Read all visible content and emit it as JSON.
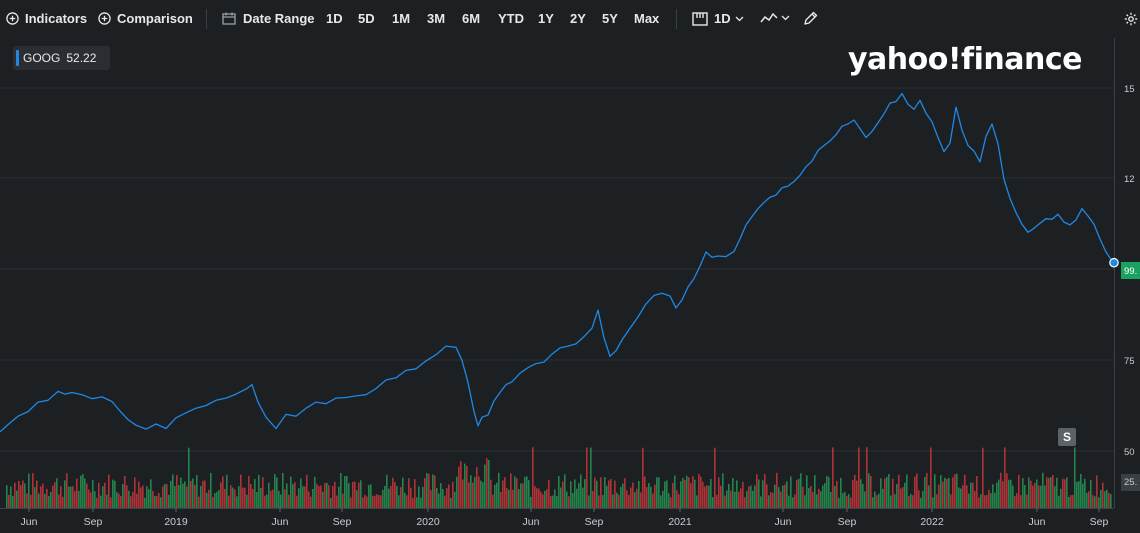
{
  "toolbar": {
    "indicators_label": "Indicators",
    "comparison_label": "Comparison",
    "date_range_label": "Date Range",
    "periods": [
      "1D",
      "5D",
      "1M",
      "3M",
      "6M",
      "YTD",
      "1Y",
      "2Y",
      "5Y",
      "Max"
    ],
    "interval_label": "1D"
  },
  "legend": {
    "symbol": "GOOG",
    "value": "52.22"
  },
  "logo": "yahoo!finance",
  "s_badge": "S",
  "colors": {
    "background": "#1d2023",
    "line": "#1e88e5",
    "up_volume": "#26a65b",
    "down_volume": "#e03a3e",
    "price_tag": "#1aa260"
  },
  "chart_data": {
    "type": "line",
    "title": "",
    "series": [
      {
        "name": "GOOG"
      }
    ],
    "x_tick_labels": [
      "Jun",
      "Sep",
      "2019",
      "Jun",
      "Sep",
      "2020",
      "Jun",
      "Sep",
      "2021",
      "Jun",
      "Sep",
      "2022",
      "Jun",
      "Sep"
    ],
    "y_tick_labels": [
      "15",
      "12",
      "99.",
      "75",
      "50",
      "25."
    ],
    "y_axis_levels": [
      150,
      125,
      100,
      75,
      50
    ],
    "price_tag_label": "99.",
    "ylim": [
      43,
      155
    ],
    "price_points": [
      [
        0,
        51
      ],
      [
        8,
        53
      ],
      [
        18,
        56
      ],
      [
        28,
        57
      ],
      [
        38,
        60
      ],
      [
        48,
        60
      ],
      [
        58,
        63
      ],
      [
        65,
        62
      ],
      [
        72,
        63
      ],
      [
        82,
        62
      ],
      [
        92,
        61
      ],
      [
        102,
        61
      ],
      [
        112,
        60
      ],
      [
        120,
        57
      ],
      [
        128,
        55
      ],
      [
        136,
        53
      ],
      [
        146,
        52
      ],
      [
        156,
        53
      ],
      [
        166,
        52
      ],
      [
        176,
        55
      ],
      [
        186,
        57
      ],
      [
        196,
        58
      ],
      [
        206,
        59
      ],
      [
        216,
        60
      ],
      [
        226,
        61
      ],
      [
        236,
        62
      ],
      [
        246,
        64
      ],
      [
        252,
        65
      ],
      [
        258,
        60
      ],
      [
        266,
        55
      ],
      [
        276,
        52
      ],
      [
        286,
        56
      ],
      [
        296,
        56
      ],
      [
        306,
        58
      ],
      [
        316,
        60
      ],
      [
        326,
        59
      ],
      [
        336,
        61
      ],
      [
        346,
        61
      ],
      [
        356,
        62
      ],
      [
        366,
        62
      ],
      [
        376,
        64
      ],
      [
        386,
        66
      ],
      [
        396,
        67
      ],
      [
        406,
        69
      ],
      [
        416,
        70
      ],
      [
        426,
        72
      ],
      [
        436,
        74
      ],
      [
        446,
        76
      ],
      [
        456,
        76
      ],
      [
        462,
        72
      ],
      [
        468,
        66
      ],
      [
        474,
        57
      ],
      [
        478,
        53
      ],
      [
        482,
        55
      ],
      [
        488,
        56
      ],
      [
        494,
        60
      ],
      [
        500,
        63
      ],
      [
        506,
        65
      ],
      [
        512,
        66
      ],
      [
        520,
        68
      ],
      [
        528,
        70
      ],
      [
        536,
        71
      ],
      [
        544,
        72
      ],
      [
        552,
        74
      ],
      [
        560,
        76
      ],
      [
        568,
        76
      ],
      [
        576,
        77
      ],
      [
        584,
        79
      ],
      [
        592,
        82
      ],
      [
        598,
        87
      ],
      [
        604,
        79
      ],
      [
        610,
        73
      ],
      [
        616,
        75
      ],
      [
        622,
        78
      ],
      [
        630,
        82
      ],
      [
        638,
        85
      ],
      [
        646,
        89
      ],
      [
        654,
        91
      ],
      [
        662,
        92
      ],
      [
        670,
        91
      ],
      [
        676,
        88
      ],
      [
        682,
        90
      ],
      [
        688,
        94
      ],
      [
        694,
        96
      ],
      [
        700,
        100
      ],
      [
        706,
        104
      ],
      [
        712,
        103
      ],
      [
        718,
        103
      ],
      [
        726,
        103
      ],
      [
        734,
        104
      ],
      [
        740,
        108
      ],
      [
        746,
        112
      ],
      [
        752,
        115
      ],
      [
        758,
        117
      ],
      [
        764,
        119
      ],
      [
        770,
        120
      ],
      [
        776,
        121
      ],
      [
        782,
        123
      ],
      [
        788,
        124
      ],
      [
        794,
        125
      ],
      [
        800,
        127
      ],
      [
        806,
        129
      ],
      [
        812,
        131
      ],
      [
        818,
        134
      ],
      [
        824,
        136
      ],
      [
        830,
        137
      ],
      [
        836,
        139
      ],
      [
        842,
        141
      ],
      [
        848,
        142
      ],
      [
        854,
        143
      ],
      [
        860,
        141
      ],
      [
        866,
        138
      ],
      [
        872,
        140
      ],
      [
        878,
        142
      ],
      [
        884,
        145
      ],
      [
        890,
        148
      ],
      [
        896,
        149
      ],
      [
        902,
        151
      ],
      [
        908,
        148
      ],
      [
        914,
        146
      ],
      [
        920,
        149
      ],
      [
        926,
        145
      ],
      [
        932,
        143
      ],
      [
        938,
        138
      ],
      [
        944,
        134
      ],
      [
        950,
        136
      ],
      [
        956,
        147
      ],
      [
        962,
        140
      ],
      [
        968,
        136
      ],
      [
        974,
        134
      ],
      [
        980,
        131
      ],
      [
        986,
        138
      ],
      [
        992,
        142
      ],
      [
        998,
        136
      ],
      [
        1004,
        126
      ],
      [
        1010,
        120
      ],
      [
        1016,
        116
      ],
      [
        1022,
        112
      ],
      [
        1028,
        110
      ],
      [
        1034,
        111
      ],
      [
        1040,
        113
      ],
      [
        1046,
        114
      ],
      [
        1052,
        114
      ],
      [
        1058,
        115
      ],
      [
        1064,
        113
      ],
      [
        1070,
        112
      ],
      [
        1076,
        114
      ],
      [
        1082,
        117
      ],
      [
        1088,
        115
      ],
      [
        1094,
        112
      ],
      [
        1100,
        108
      ],
      [
        1106,
        104
      ],
      [
        1114,
        101
      ]
    ]
  }
}
